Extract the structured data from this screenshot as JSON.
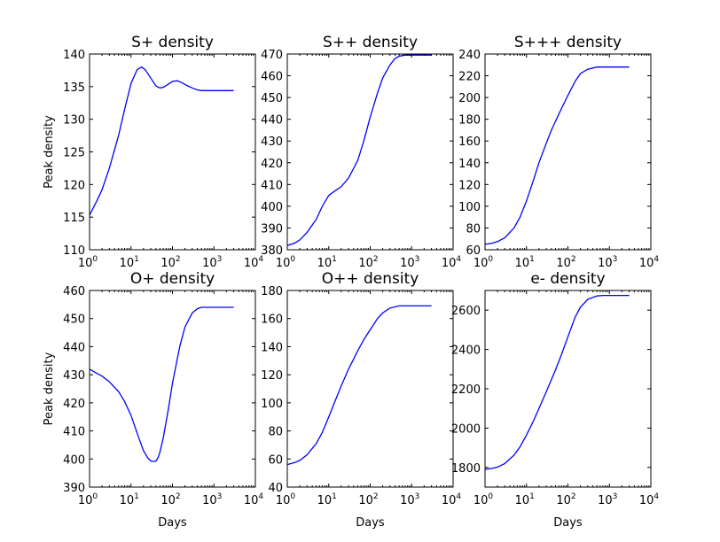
{
  "chart_data": [
    {
      "type": "line",
      "title": "S+ density",
      "xscale": "log",
      "xlim": [
        1,
        10000
      ],
      "xticks": [
        1,
        10,
        100,
        1000,
        10000
      ],
      "ylim": [
        110,
        140
      ],
      "yticks": [
        110,
        115,
        120,
        125,
        130,
        135,
        140
      ],
      "xlabel": "",
      "ylabel": "Peak density",
      "series": [
        {
          "color": "#0000ff",
          "x": [
            1,
            1.5,
            2,
            3,
            5,
            7,
            10,
            14,
            18,
            22,
            30,
            40,
            50,
            60,
            80,
            100,
            130,
            170,
            220,
            300,
            400,
            500,
            700,
            1000,
            1500,
            2000,
            3000
          ],
          "y": [
            115.3,
            117.5,
            119.2,
            122.5,
            127.5,
            131.5,
            135.5,
            137.6,
            138.0,
            137.6,
            136.3,
            135.1,
            134.8,
            134.9,
            135.4,
            135.8,
            135.9,
            135.6,
            135.2,
            134.8,
            134.5,
            134.4,
            134.4,
            134.4,
            134.4,
            134.4,
            134.4
          ]
        }
      ]
    },
    {
      "type": "line",
      "title": "S++ density",
      "xscale": "log",
      "xlim": [
        1,
        10000
      ],
      "xticks": [
        1,
        10,
        100,
        1000,
        10000
      ],
      "ylim": [
        380,
        470
      ],
      "yticks": [
        380,
        390,
        400,
        410,
        420,
        430,
        440,
        450,
        460,
        470
      ],
      "xlabel": "",
      "ylabel": "",
      "series": [
        {
          "color": "#0000ff",
          "x": [
            1,
            1.5,
            2,
            3,
            5,
            7,
            10,
            14,
            20,
            30,
            50,
            70,
            100,
            150,
            200,
            300,
            400,
            500,
            700,
            1000,
            2000,
            3000
          ],
          "y": [
            382,
            383,
            384.5,
            388,
            394,
            400,
            405,
            407,
            409,
            413,
            421,
            430,
            441,
            452,
            459,
            465,
            468,
            469,
            469.5,
            469.5,
            469.5,
            469.5
          ]
        }
      ]
    },
    {
      "type": "line",
      "title": "S+++ density",
      "xscale": "log",
      "xlim": [
        1,
        10000
      ],
      "xticks": [
        1,
        10,
        100,
        1000,
        10000
      ],
      "ylim": [
        60,
        240
      ],
      "yticks": [
        60,
        80,
        100,
        120,
        140,
        160,
        180,
        200,
        220,
        240
      ],
      "xlabel": "",
      "ylabel": "",
      "series": [
        {
          "color": "#0000ff",
          "x": [
            1,
            1.5,
            2,
            3,
            5,
            7,
            10,
            15,
            20,
            30,
            40,
            50,
            70,
            100,
            150,
            200,
            300,
            500,
            1000,
            2000,
            3000
          ],
          "y": [
            65,
            66,
            67.5,
            71,
            80,
            90,
            105,
            125,
            140,
            158,
            170,
            178,
            190,
            202,
            215,
            222,
            226,
            228,
            228,
            228,
            228
          ]
        }
      ]
    },
    {
      "type": "line",
      "title": "O+ density",
      "xscale": "log",
      "xlim": [
        1,
        10000
      ],
      "xticks": [
        1,
        10,
        100,
        1000,
        10000
      ],
      "ylim": [
        390,
        460
      ],
      "yticks": [
        390,
        400,
        410,
        420,
        430,
        440,
        450,
        460
      ],
      "xlabel": "Days",
      "ylabel": "Peak density",
      "series": [
        {
          "color": "#0000ff",
          "x": [
            1,
            1.5,
            2,
            3,
            5,
            7,
            10,
            15,
            20,
            25,
            30,
            35,
            40,
            45,
            50,
            60,
            80,
            100,
            150,
            200,
            300,
            400,
            500,
            700,
            1000,
            2000,
            3000
          ],
          "y": [
            432,
            430.5,
            429.5,
            427.5,
            424,
            420.5,
            415.5,
            408,
            403,
            400.5,
            399.3,
            399.1,
            399.3,
            400.5,
            402.5,
            407.5,
            418,
            427,
            440,
            447,
            452,
            453.5,
            454,
            454,
            454,
            454,
            454
          ]
        }
      ]
    },
    {
      "type": "line",
      "title": "O++ density",
      "xscale": "log",
      "xlim": [
        1,
        10000
      ],
      "xticks": [
        1,
        10,
        100,
        1000,
        10000
      ],
      "ylim": [
        40,
        180
      ],
      "yticks": [
        40,
        60,
        80,
        100,
        120,
        140,
        160,
        180
      ],
      "xlabel": "Days",
      "ylabel": "",
      "series": [
        {
          "color": "#0000ff",
          "x": [
            1,
            1.5,
            2,
            3,
            5,
            7,
            10,
            15,
            20,
            30,
            50,
            70,
            100,
            150,
            200,
            300,
            500,
            700,
            1000,
            2000,
            3000
          ],
          "y": [
            56,
            57.5,
            59,
            63,
            71,
            79,
            90,
            103,
            112,
            124,
            137,
            145,
            152,
            160,
            164,
            167.5,
            169,
            169,
            169,
            169,
            169
          ]
        }
      ]
    },
    {
      "type": "line",
      "title": "e- density",
      "xscale": "log",
      "xlim": [
        1,
        10000
      ],
      "xticks": [
        1,
        10,
        100,
        1000,
        10000
      ],
      "ylim": [
        1700,
        2700
      ],
      "yticks": [
        1800,
        2000,
        2200,
        2400,
        2600
      ],
      "xlabel": "Days",
      "ylabel": "",
      "series": [
        {
          "color": "#0000ff",
          "x": [
            1,
            1.5,
            2,
            3,
            5,
            7,
            10,
            15,
            20,
            30,
            50,
            70,
            100,
            150,
            200,
            300,
            500,
            700,
            1000,
            2000,
            3000
          ],
          "y": [
            1790,
            1795,
            1802,
            1820,
            1862,
            1905,
            1965,
            2040,
            2100,
            2185,
            2295,
            2375,
            2465,
            2565,
            2615,
            2655,
            2672,
            2675,
            2675,
            2675,
            2675
          ]
        }
      ]
    }
  ]
}
